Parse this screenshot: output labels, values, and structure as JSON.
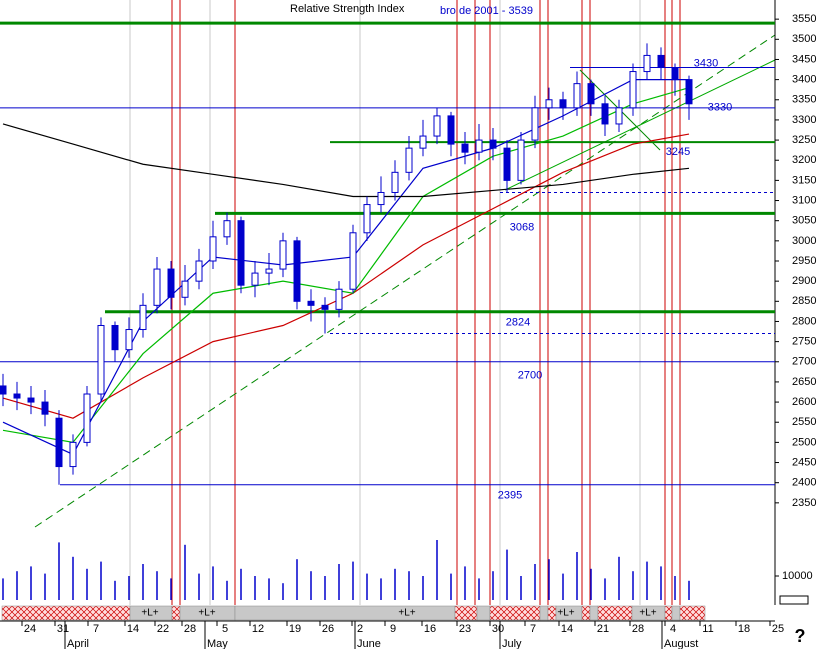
{
  "chart_data": {
    "type": "candlestick",
    "title": "Relative Strength Index",
    "subtitle": "bro de 2001 - 3539",
    "ylim": [
      2300,
      3600
    ],
    "yticks": [
      2350,
      2400,
      2450,
      2500,
      2550,
      2600,
      2650,
      2700,
      2750,
      2800,
      2850,
      2900,
      2950,
      3000,
      3050,
      3100,
      3150,
      3200,
      3250,
      3300,
      3350,
      3400,
      3450,
      3500,
      3550
    ],
    "open": [
      2640,
      2620,
      2610,
      2600,
      2560,
      2440,
      2500,
      2620,
      2790,
      2730,
      2780,
      2840,
      2930,
      2860,
      2900,
      2950,
      3010,
      3050,
      2890,
      2920,
      2930,
      3000,
      2850,
      2840,
      2830,
      2880,
      3020,
      3090,
      3120,
      3170,
      3230,
      3260,
      3310,
      3240,
      3220,
      3250,
      3230,
      3150,
      3250,
      3330,
      3350,
      3330,
      3390,
      3340,
      3290,
      3330,
      3420,
      3460,
      3430,
      3400
    ],
    "high": [
      2670,
      2650,
      2640,
      2630,
      2580,
      2520,
      2640,
      2810,
      2800,
      2810,
      2870,
      2960,
      2950,
      2940,
      2980,
      3050,
      3070,
      3060,
      2950,
      2970,
      3020,
      3010,
      2880,
      2860,
      2900,
      3040,
      3110,
      3160,
      3200,
      3260,
      3300,
      3330,
      3320,
      3270,
      3290,
      3280,
      3250,
      3270,
      3360,
      3380,
      3370,
      3420,
      3400,
      3360,
      3350,
      3440,
      3490,
      3480,
      3440,
      3410
    ],
    "low": [
      2590,
      2580,
      2570,
      2540,
      2395,
      2420,
      2490,
      2600,
      2700,
      2710,
      2760,
      2820,
      2830,
      2840,
      2880,
      2930,
      2990,
      2870,
      2860,
      2890,
      2910,
      2830,
      2800,
      2770,
      2810,
      2870,
      3000,
      3070,
      3100,
      3150,
      3210,
      3240,
      3210,
      3190,
      3200,
      3200,
      3120,
      3140,
      3230,
      3300,
      3300,
      3310,
      3310,
      3260,
      3270,
      3310,
      3400,
      3400,
      3360,
      3300
    ],
    "close": [
      2620,
      2610,
      2600,
      2570,
      2440,
      2500,
      2620,
      2790,
      2730,
      2780,
      2840,
      2930,
      2860,
      2900,
      2950,
      3010,
      3050,
      2890,
      2920,
      2930,
      3000,
      2850,
      2840,
      2830,
      2880,
      3020,
      3090,
      3120,
      3170,
      3230,
      3260,
      3310,
      3240,
      3220,
      3250,
      3230,
      3150,
      3250,
      3330,
      3350,
      3330,
      3390,
      3340,
      3290,
      3330,
      3420,
      3460,
      3430,
      3400,
      3340
    ],
    "up_color": "#ffffff",
    "down_color": "#0000cc",
    "series": [
      {
        "color": "#cc0000",
        "x": [
          0,
          5,
          10,
          15,
          20,
          25,
          30,
          35,
          40,
          45,
          49
        ],
        "values": [
          2610,
          2560,
          2660,
          2750,
          2790,
          2870,
          2990,
          3080,
          3170,
          3240,
          3265
        ]
      },
      {
        "color": "#00bb00",
        "x": [
          0,
          5,
          10,
          15,
          20,
          25,
          30,
          35,
          40,
          45,
          49
        ],
        "values": [
          2530,
          2500,
          2720,
          2870,
          2900,
          2870,
          3110,
          3210,
          3260,
          3340,
          3380
        ]
      },
      {
        "color": "#0000cc",
        "x": [
          0,
          5,
          10,
          15,
          20,
          25,
          30,
          35,
          40,
          45,
          49
        ],
        "values": [
          2550,
          2470,
          2800,
          2960,
          2940,
          2960,
          3180,
          3230,
          3310,
          3400,
          3400
        ]
      },
      {
        "color": "#000000",
        "x": [
          0,
          5,
          10,
          15,
          20,
          25,
          30,
          35,
          40,
          45,
          49
        ],
        "values": [
          3290,
          3240,
          3190,
          3165,
          3140,
          3110,
          3110,
          3125,
          3140,
          3165,
          3180
        ]
      }
    ],
    "levels": [
      {
        "value": 3540,
        "color": "#008800"
      },
      {
        "value": 3430,
        "color": "#0000cc"
      },
      {
        "value": 3330,
        "color": "#0000cc"
      },
      {
        "value": 3245,
        "color": "#008800"
      },
      {
        "value": 3120,
        "color": "#0000cc"
      },
      {
        "value": 3068,
        "color": "#008800"
      },
      {
        "value": 2824,
        "color": "#008800"
      },
      {
        "value": 2770,
        "color": "#0000cc"
      },
      {
        "value": 2700,
        "color": "#0000cc"
      },
      {
        "value": 2395,
        "color": "#0000cc"
      }
    ],
    "volume": [
      9000,
      12000,
      14000,
      11000,
      24000,
      18000,
      13000,
      16000,
      8000,
      10000,
      15000,
      12000,
      9000,
      23000,
      11000,
      14000,
      8000,
      13000,
      10000,
      9000,
      7000,
      17000,
      12000,
      10000,
      15000,
      16000,
      11000,
      9000,
      13000,
      12000,
      10000,
      25000,
      11000,
      14000,
      9000,
      12000,
      21000,
      10000,
      15000,
      17000,
      11000,
      20000,
      13000,
      9000,
      18000,
      12000,
      16000,
      14000,
      10000,
      8000
    ],
    "vlim": [
      0,
      25000
    ],
    "vticks": [
      10000
    ],
    "volume_color": "#0000cc",
    "xtick_labels": [
      "24",
      "31",
      "7",
      "14",
      "22",
      "28",
      "5",
      "12",
      "19",
      "26",
      "2",
      "9",
      "16",
      "23",
      "30",
      "7",
      "14",
      "21",
      "28",
      "4",
      "11",
      "18",
      "25"
    ],
    "months": [
      "April",
      "May",
      "June",
      "July",
      "August"
    ],
    "strip_labels": [
      "+L+",
      "+L+",
      "+L+",
      "+L+",
      "+L+"
    ],
    "help": "?"
  }
}
